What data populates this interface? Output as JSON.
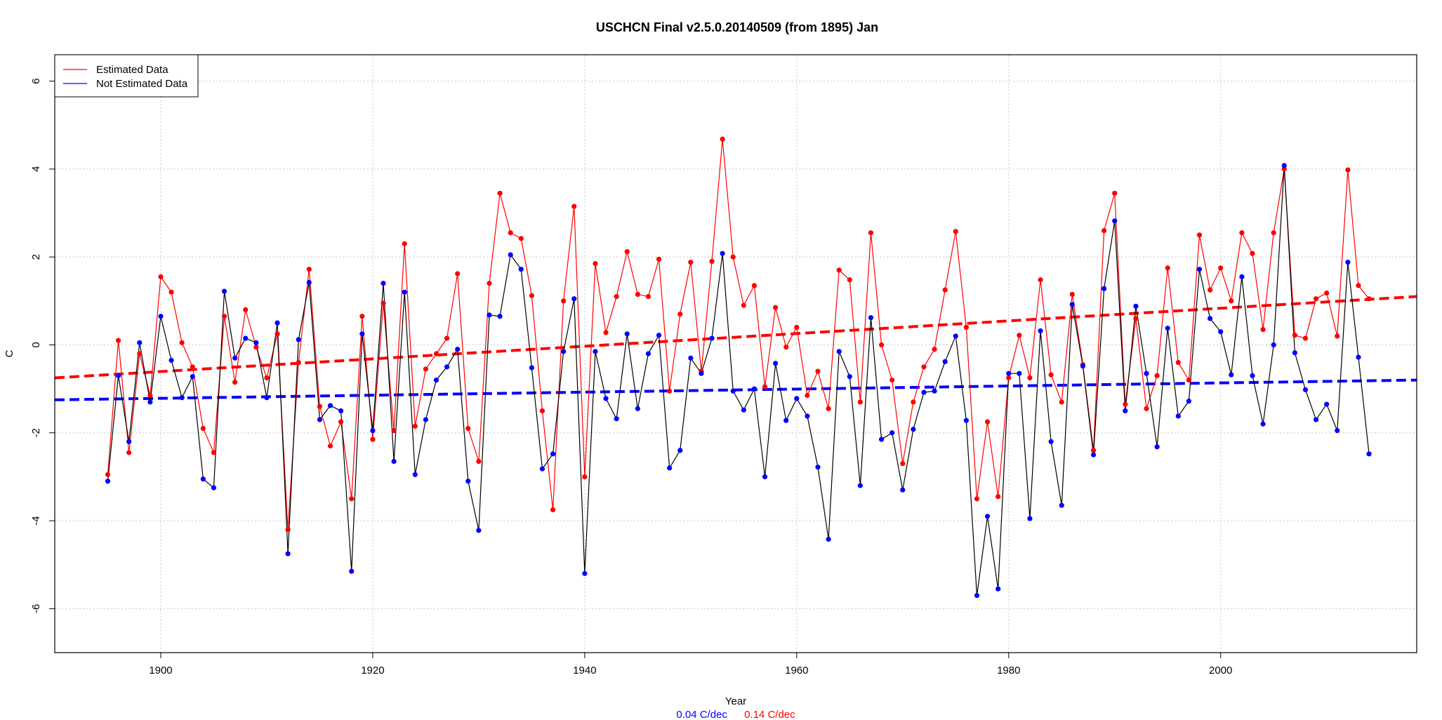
{
  "chart_data": {
    "type": "line",
    "title": "USCHCN Final v2.5.0.20140509 (from 1895) Jan",
    "xlabel": "Year",
    "ylabel": "C",
    "xlim": [
      1890,
      2018.5
    ],
    "ylim": [
      -7,
      6.6
    ],
    "x_ticks": [
      1900,
      1920,
      1940,
      1960,
      1980,
      2000
    ],
    "y_ticks": [
      -6,
      -4,
      -2,
      0,
      2,
      4,
      6
    ],
    "grid": true,
    "legend_position": "top-left",
    "colors": {
      "estimated": "#ff0000",
      "not_estimated": "#0000ff",
      "connector": "#000000"
    },
    "trend_labels": [
      {
        "text": "0.04 C/dec",
        "color": "#0000ff"
      },
      {
        "text": "0.14 C/dec",
        "color": "#ff0000"
      }
    ],
    "x": [
      1895,
      1896,
      1897,
      1898,
      1899,
      1900,
      1901,
      1902,
      1903,
      1904,
      1905,
      1906,
      1907,
      1908,
      1909,
      1910,
      1911,
      1912,
      1913,
      1914,
      1915,
      1916,
      1917,
      1918,
      1919,
      1920,
      1921,
      1922,
      1923,
      1924,
      1925,
      1926,
      1927,
      1928,
      1929,
      1930,
      1931,
      1932,
      1933,
      1934,
      1935,
      1936,
      1937,
      1938,
      1939,
      1940,
      1941,
      1942,
      1943,
      1944,
      1945,
      1946,
      1947,
      1948,
      1949,
      1950,
      1951,
      1952,
      1953,
      1954,
      1955,
      1956,
      1957,
      1958,
      1959,
      1960,
      1961,
      1962,
      1963,
      1964,
      1965,
      1966,
      1967,
      1968,
      1969,
      1970,
      1971,
      1972,
      1973,
      1974,
      1975,
      1976,
      1977,
      1978,
      1979,
      1980,
      1981,
      1982,
      1983,
      1984,
      1985,
      1986,
      1987,
      1988,
      1989,
      1990,
      1991,
      1992,
      1993,
      1994,
      1995,
      1996,
      1997,
      1998,
      1999,
      2000,
      2001,
      2002,
      2003,
      2004,
      2005,
      2006,
      2007,
      2008,
      2009,
      2010,
      2011,
      2012,
      2013,
      2014
    ],
    "series": [
      {
        "name": "Estimated Data",
        "color": "#ff0000",
        "values": [
          -2.95,
          0.1,
          -2.45,
          -0.2,
          -1.15,
          1.55,
          1.2,
          0.05,
          -0.5,
          -1.9,
          -2.45,
          0.65,
          -0.85,
          0.8,
          -0.05,
          -0.75,
          0.25,
          -4.2,
          -0.4,
          1.72,
          -1.4,
          -2.3,
          -1.75,
          -3.5,
          0.65,
          -2.15,
          0.95,
          -1.95,
          2.3,
          -1.85,
          -0.55,
          -0.2,
          0.15,
          1.62,
          -1.9,
          -2.65,
          1.4,
          3.45,
          2.55,
          2.42,
          1.12,
          -1.5,
          -3.75,
          1.0,
          3.15,
          -3.0,
          1.85,
          0.28,
          1.1,
          2.12,
          1.15,
          1.1,
          1.95,
          -1.05,
          0.7,
          1.88,
          -0.6,
          1.9,
          4.68,
          2.0,
          0.9,
          1.35,
          -0.95,
          0.85,
          -0.05,
          0.4,
          -1.15,
          -0.6,
          -1.45,
          1.7,
          1.48,
          -1.3,
          2.55,
          0.0,
          -0.8,
          -2.7,
          -1.3,
          -0.5,
          -0.1,
          1.25,
          2.58,
          0.4,
          -3.5,
          -1.75,
          -3.45,
          -0.75,
          0.22,
          -0.75,
          1.48,
          -0.68,
          -1.3,
          1.15,
          -0.45,
          -2.4,
          2.6,
          3.45,
          -1.35,
          0.6,
          -1.45,
          -0.7,
          1.75,
          -0.4,
          -0.8,
          2.5,
          1.25,
          1.75,
          1.0,
          2.55,
          2.08,
          0.35,
          2.55,
          4.0,
          0.22,
          0.15,
          1.05,
          1.18,
          0.2,
          3.98,
          1.35,
          1.05
        ]
      },
      {
        "name": "Not Estimated Data",
        "color": "#0000ff",
        "values": [
          -3.1,
          -0.7,
          -2.2,
          0.05,
          -1.3,
          0.65,
          -0.35,
          -1.2,
          -0.72,
          -3.05,
          -3.25,
          1.22,
          -0.3,
          0.15,
          0.05,
          -1.2,
          0.5,
          -4.75,
          0.12,
          1.42,
          -1.7,
          -1.38,
          -1.5,
          -5.15,
          0.25,
          -1.95,
          1.4,
          -2.65,
          1.2,
          -2.95,
          -1.7,
          -0.8,
          -0.5,
          -0.1,
          -3.1,
          -4.22,
          0.68,
          0.65,
          2.05,
          1.72,
          -0.52,
          -2.82,
          -2.48,
          -0.15,
          1.05,
          -5.2,
          -0.15,
          -1.22,
          -1.68,
          0.25,
          -1.45,
          -0.2,
          0.22,
          -2.8,
          -2.4,
          -0.3,
          -0.65,
          0.15,
          2.08,
          -1.05,
          -1.48,
          -1.0,
          -3.0,
          -0.42,
          -1.72,
          -1.22,
          -1.62,
          -2.78,
          -4.42,
          -0.15,
          -0.72,
          -3.2,
          0.62,
          -2.15,
          -2.0,
          -3.3,
          -1.92,
          -1.08,
          -1.05,
          -0.38,
          0.2,
          -1.72,
          -5.7,
          -3.9,
          -5.55,
          -0.65,
          -0.65,
          -3.95,
          0.32,
          -2.2,
          -3.65,
          0.92,
          -0.48,
          -2.5,
          1.28,
          2.82,
          -1.5,
          0.88,
          -0.65,
          -2.32,
          0.38,
          -1.62,
          -1.28,
          1.72,
          0.6,
          0.3,
          -0.68,
          1.55,
          -0.7,
          -1.8,
          0.0,
          4.08,
          -0.18,
          -1.02,
          -1.7,
          -1.35,
          -1.95,
          1.88,
          -0.28,
          -2.48
        ]
      }
    ],
    "trends": [
      {
        "name": "Estimated Data",
        "color": "#ff0000",
        "y_at_xmin": -0.75,
        "y_at_xmax": 1.1
      },
      {
        "name": "Not Estimated Data",
        "color": "#0000ff",
        "y_at_xmin": -1.25,
        "y_at_xmax": -0.8
      }
    ]
  }
}
